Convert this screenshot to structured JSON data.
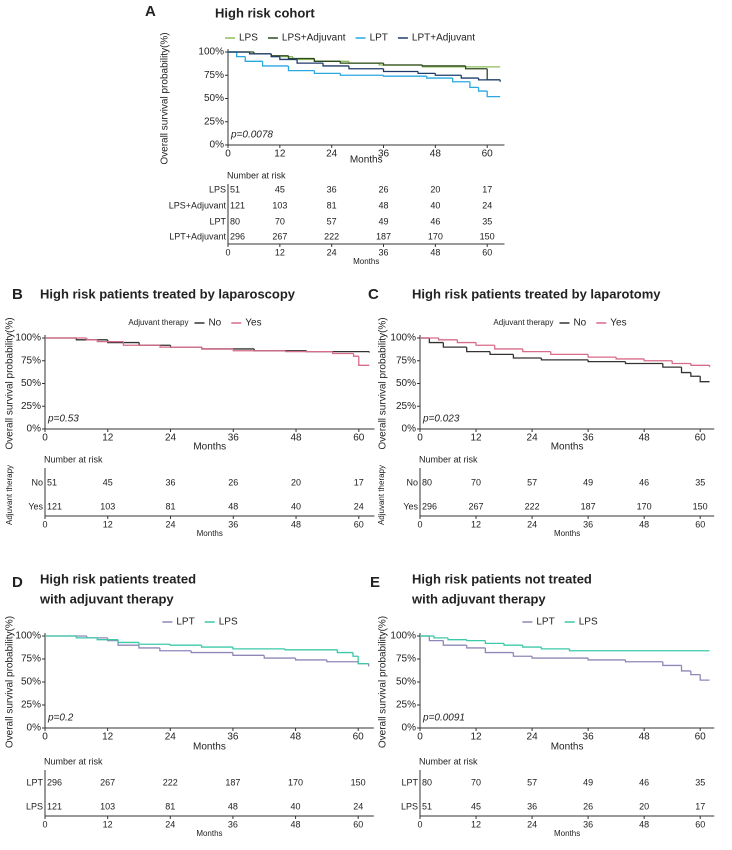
{
  "chart_data": [
    {
      "type": "line",
      "panel": "A",
      "title": "High risk cohort",
      "p_value": "p=0.0078",
      "xlabel": "Months",
      "ylabel": "Overall survival probability(%)",
      "xlim": [
        0,
        64
      ],
      "ylim": [
        0,
        100
      ],
      "xticks": [
        0,
        12,
        24,
        36,
        48,
        60
      ],
      "yticks": [
        {
          "value": 0,
          "label": "0%"
        },
        {
          "value": 25,
          "label": "25%"
        },
        {
          "value": 50,
          "label": "50%"
        },
        {
          "value": 75,
          "label": "75%"
        },
        {
          "value": 100,
          "label": "100%"
        }
      ],
      "series": [
        {
          "name": "LPS",
          "color": "#8fbc5a",
          "x": [
            0,
            5,
            10,
            15,
            20,
            28,
            35,
            45,
            63
          ],
          "values": [
            100,
            98,
            95,
            92,
            90,
            88,
            86,
            84,
            84
          ]
        },
        {
          "name": "LPS+Adjuvant",
          "color": "#2d4a1e",
          "x": [
            0,
            6,
            10,
            14,
            20,
            26,
            36,
            45,
            55,
            60,
            63
          ],
          "values": [
            100,
            98,
            96,
            93,
            90,
            88,
            86,
            85,
            82,
            70,
            70
          ]
        },
        {
          "name": "LPT",
          "color": "#29a8e0",
          "x": [
            0,
            2,
            4,
            8,
            14,
            20,
            26,
            36,
            46,
            52,
            56,
            58,
            60,
            63
          ],
          "values": [
            100,
            95,
            90,
            85,
            80,
            77,
            75,
            74,
            72,
            68,
            62,
            58,
            52,
            52
          ]
        },
        {
          "name": "LPT+Adjuvant",
          "color": "#1f3d6b",
          "x": [
            0,
            5,
            10,
            12,
            16,
            22,
            28,
            36,
            44,
            48,
            54,
            58,
            63
          ],
          "values": [
            100,
            98,
            95,
            92,
            88,
            85,
            82,
            79,
            77,
            75,
            72,
            70,
            68
          ]
        }
      ],
      "risk_table": {
        "title": "Number at risk",
        "xlabel": "Months",
        "counts": [
          [
            51,
            45,
            36,
            26,
            20,
            17
          ],
          [
            121,
            103,
            81,
            48,
            40,
            24
          ],
          [
            80,
            70,
            57,
            49,
            46,
            35
          ],
          [
            296,
            267,
            222,
            187,
            170,
            150
          ]
        ]
      }
    },
    {
      "type": "line",
      "panel": "B",
      "title": "High risk patients treated by laparoscopy",
      "legend_title": "Adjuvant therapy",
      "p_value": "p=0.53",
      "xlabel": "Months",
      "ylabel": "Overall survival probability(%)",
      "xlim": [
        0,
        63
      ],
      "ylim": [
        0,
        100
      ],
      "xticks": [
        0,
        12,
        24,
        36,
        48,
        60
      ],
      "yticks": [
        {
          "value": 0,
          "label": "0%"
        },
        {
          "value": 25,
          "label": "25%"
        },
        {
          "value": 50,
          "label": "50%"
        },
        {
          "value": 75,
          "label": "75%"
        },
        {
          "value": 100,
          "label": "100%"
        }
      ],
      "series": [
        {
          "name": "No",
          "color": "#333333",
          "x": [
            0,
            6,
            12,
            18,
            24,
            30,
            40,
            50,
            62
          ],
          "values": [
            100,
            98,
            95,
            92,
            90,
            88,
            86,
            85,
            84
          ]
        },
        {
          "name": "Yes",
          "color": "#d96b8a",
          "x": [
            0,
            8,
            10,
            15,
            22,
            30,
            36,
            46,
            55,
            59,
            60,
            62
          ],
          "values": [
            100,
            98,
            96,
            92,
            90,
            88,
            86,
            85,
            83,
            80,
            70,
            70
          ]
        }
      ],
      "risk_table": {
        "title": "Number at risk",
        "xlabel": "Months",
        "ylabel": "Adjuvant therapy",
        "counts": [
          [
            51,
            45,
            36,
            26,
            20,
            17
          ],
          [
            121,
            103,
            81,
            48,
            40,
            24
          ]
        ]
      }
    },
    {
      "type": "line",
      "panel": "C",
      "title": "High risk patients treated by laparotomy",
      "legend_title": "Adjuvant therapy",
      "p_value": "p=0.023",
      "xlabel": "Months",
      "ylabel": "Overall survival probability(%)",
      "xlim": [
        0,
        63
      ],
      "ylim": [
        0,
        100
      ],
      "xticks": [
        0,
        12,
        24,
        36,
        48,
        60
      ],
      "yticks": [
        {
          "value": 0,
          "label": "0%"
        },
        {
          "value": 25,
          "label": "25%"
        },
        {
          "value": 50,
          "label": "50%"
        },
        {
          "value": 75,
          "label": "75%"
        },
        {
          "value": 100,
          "label": "100%"
        }
      ],
      "series": [
        {
          "name": "No",
          "color": "#333333",
          "x": [
            0,
            2,
            5,
            10,
            15,
            20,
            26,
            36,
            44,
            52,
            56,
            58,
            60,
            62
          ],
          "values": [
            100,
            95,
            90,
            85,
            82,
            78,
            76,
            74,
            72,
            68,
            62,
            58,
            52,
            52
          ]
        },
        {
          "name": "Yes",
          "color": "#d96b8a",
          "x": [
            0,
            4,
            8,
            12,
            16,
            22,
            28,
            36,
            42,
            48,
            54,
            58,
            62
          ],
          "values": [
            100,
            98,
            95,
            92,
            88,
            85,
            82,
            79,
            77,
            75,
            72,
            70,
            68
          ]
        }
      ],
      "risk_table": {
        "title": "Number at risk",
        "xlabel": "Months",
        "ylabel": "Adjuvant therapy",
        "counts": [
          [
            80,
            70,
            57,
            49,
            46,
            35
          ],
          [
            296,
            267,
            222,
            187,
            170,
            150
          ]
        ]
      }
    },
    {
      "type": "line",
      "panel": "D",
      "title": [
        "High risk patients treated",
        "with adjuvant therapy"
      ],
      "p_value": "p=0.2",
      "xlabel": "Months",
      "ylabel": "Overall survival probability(%)",
      "xlim": [
        0,
        63
      ],
      "ylim": [
        0,
        100
      ],
      "xticks": [
        0,
        12,
        24,
        36,
        48,
        60
      ],
      "yticks": [
        {
          "value": 0,
          "label": "0%"
        },
        {
          "value": 25,
          "label": "25%"
        },
        {
          "value": 50,
          "label": "50%"
        },
        {
          "value": 75,
          "label": "75%"
        },
        {
          "value": 100,
          "label": "100%"
        }
      ],
      "series": [
        {
          "name": "LPT",
          "color": "#8e88b8",
          "x": [
            0,
            8,
            12,
            14,
            18,
            22,
            28,
            36,
            42,
            48,
            54,
            60,
            62
          ],
          "values": [
            100,
            98,
            95,
            90,
            87,
            84,
            82,
            79,
            76,
            74,
            72,
            70,
            67
          ]
        },
        {
          "name": "LPS",
          "color": "#3cc9a8",
          "x": [
            0,
            6,
            10,
            14,
            18,
            24,
            30,
            36,
            46,
            56,
            59,
            60,
            62
          ],
          "values": [
            100,
            98,
            96,
            93,
            91,
            90,
            88,
            86,
            85,
            82,
            78,
            70,
            70
          ]
        }
      ],
      "risk_table": {
        "title": "Number at risk",
        "xlabel": "Months",
        "counts": [
          [
            296,
            267,
            222,
            187,
            170,
            150
          ],
          [
            121,
            103,
            81,
            48,
            40,
            24
          ]
        ]
      }
    },
    {
      "type": "line",
      "panel": "E",
      "title": [
        "High risk patients not treated",
        "with adjuvant therapy"
      ],
      "p_value": "p=0.0091",
      "xlabel": "Months",
      "ylabel": "Overall survival probability(%)",
      "xlim": [
        0,
        63
      ],
      "ylim": [
        0,
        100
      ],
      "xticks": [
        0,
        12,
        24,
        36,
        48,
        60
      ],
      "yticks": [
        {
          "value": 0,
          "label": "0%"
        },
        {
          "value": 25,
          "label": "25%"
        },
        {
          "value": 50,
          "label": "50%"
        },
        {
          "value": 75,
          "label": "75%"
        },
        {
          "value": 100,
          "label": "100%"
        }
      ],
      "series": [
        {
          "name": "LPT",
          "color": "#8e88b8",
          "x": [
            0,
            2,
            5,
            10,
            14,
            20,
            24,
            36,
            44,
            52,
            56,
            58,
            60,
            62
          ],
          "values": [
            100,
            95,
            90,
            87,
            82,
            78,
            76,
            74,
            72,
            68,
            62,
            58,
            52,
            52
          ]
        },
        {
          "name": "LPS",
          "color": "#3cc9a8",
          "x": [
            0,
            3,
            6,
            10,
            14,
            18,
            22,
            26,
            32,
            62
          ],
          "values": [
            100,
            98,
            96,
            95,
            92,
            90,
            88,
            86,
            84,
            84
          ]
        }
      ],
      "risk_table": {
        "title": "Number at risk",
        "xlabel": "Months",
        "counts": [
          [
            80,
            70,
            57,
            49,
            46,
            35
          ],
          [
            51,
            45,
            36,
            26,
            20,
            17
          ]
        ]
      }
    }
  ]
}
